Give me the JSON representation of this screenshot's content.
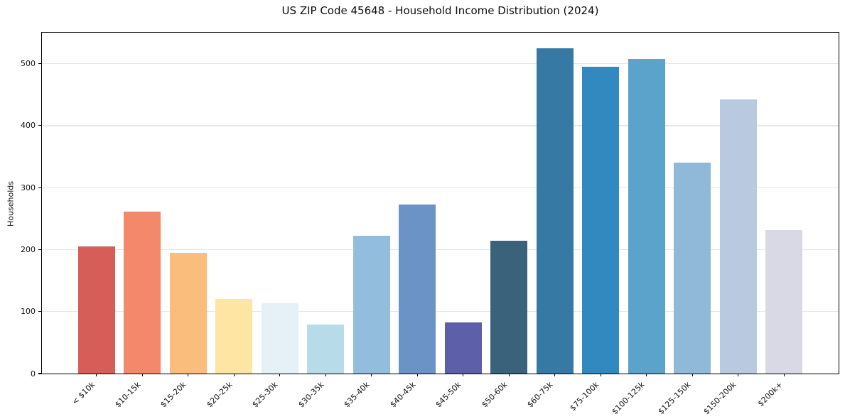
{
  "chart_data": {
    "type": "bar",
    "title": "US ZIP Code 45648 - Household Income Distribution (2024)",
    "xlabel": "",
    "ylabel": "Households",
    "categories": [
      "< $10k",
      "$10-15k",
      "$15-20k",
      "$20-25k",
      "$25-30k",
      "$30-35k",
      "$35-40k",
      "$40-45k",
      "$45-50k",
      "$50-60k",
      "$60-75k",
      "$75-100k",
      "$100-125k",
      "$125-150k",
      "$150-200k",
      "$200k+"
    ],
    "values": [
      205,
      261,
      195,
      120,
      114,
      79,
      222,
      273,
      83,
      214,
      525,
      495,
      508,
      340,
      442,
      231
    ],
    "bar_colors": [
      "#d65d58",
      "#f4886b",
      "#fbbd7b",
      "#fde5a4",
      "#e6f0f7",
      "#b7dbe9",
      "#92bddc",
      "#6b93c5",
      "#5d60a9",
      "#3a627b",
      "#3679a4",
      "#3289bf",
      "#5ba3cb",
      "#90b8d8",
      "#b8c9e0",
      "#d8d9e5"
    ],
    "ylim": [
      0,
      550
    ],
    "yticks": [
      0,
      100,
      200,
      300,
      400,
      500
    ],
    "grid": "horizontal, light gray, below bars",
    "legend": "none",
    "x_tick_rotation_deg": 45,
    "bar_width_fraction": 0.8
  },
  "style": {
    "background": "#ffffff",
    "grid_color": "#e6e6e6",
    "spine_color": "#000000",
    "text_color": "#111111"
  }
}
